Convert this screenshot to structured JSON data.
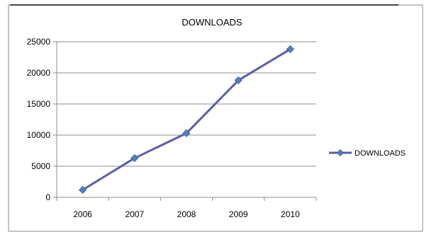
{
  "chart_data": {
    "type": "line",
    "title": "DOWNLOADS",
    "xlabel": "",
    "ylabel": "",
    "categories": [
      "2006",
      "2007",
      "2008",
      "2009",
      "2010"
    ],
    "series": [
      {
        "name": "DOWNLOADS",
        "values": [
          1200,
          6300,
          10300,
          18800,
          23800
        ],
        "color": "#5B5EA6",
        "marker": "diamond",
        "marker_color": "#4F81BD"
      }
    ],
    "ylim": [
      0,
      25000
    ],
    "yticks": [
      "0",
      "5000",
      "10000",
      "15000",
      "20000",
      "25000"
    ],
    "grid": true,
    "legend_position": "right"
  }
}
